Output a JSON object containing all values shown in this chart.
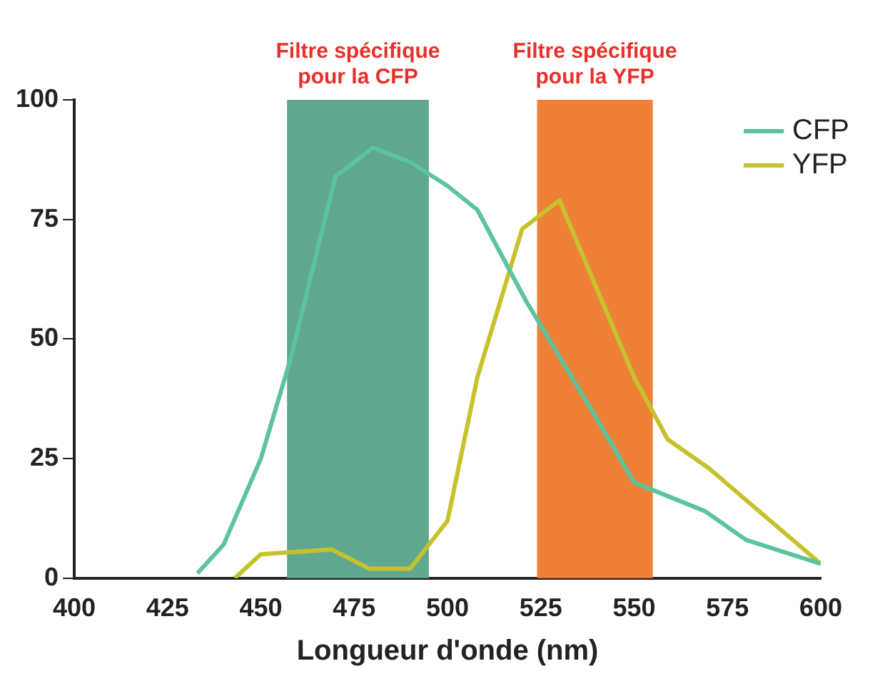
{
  "chart_data": {
    "type": "line",
    "xlabel": "Longueur d'onde (nm)",
    "xlim": [
      400,
      600
    ],
    "xticks": [
      400,
      425,
      450,
      475,
      500,
      525,
      550,
      575,
      600
    ],
    "ylim": [
      0,
      100
    ],
    "yticks": [
      0,
      25,
      50,
      75,
      100
    ],
    "grid": false,
    "legend": "top right",
    "marker": "none",
    "line_style": "solid",
    "series": [
      {
        "name": "CFP",
        "color": "#5cc49c",
        "x": [
          433,
          440,
          450,
          458,
          470,
          480,
          490,
          500,
          508,
          521,
          531,
          541,
          550,
          569,
          580,
          600
        ],
        "values": [
          1,
          7,
          25,
          46,
          84,
          90,
          87,
          82,
          77,
          58,
          45,
          32,
          20,
          14,
          8,
          3
        ]
      },
      {
        "name": "YFP",
        "color": "#c6c22c",
        "x": [
          443,
          450,
          469,
          479,
          490,
          500,
          508,
          520,
          530,
          550,
          559,
          570,
          600
        ],
        "values": [
          0,
          5,
          6,
          2,
          2,
          12,
          42,
          73,
          79,
          42,
          29,
          23,
          3
        ]
      }
    ],
    "bands": [
      {
        "axis": "x",
        "from": 457,
        "to": 495,
        "label": "Filtre spécifique\npour la CFP",
        "color": "#5fa88f"
      },
      {
        "axis": "x",
        "from": 524,
        "to": 555,
        "label": "Filtre spécifique\npour la YFP",
        "color": "#ee8038"
      }
    ]
  }
}
